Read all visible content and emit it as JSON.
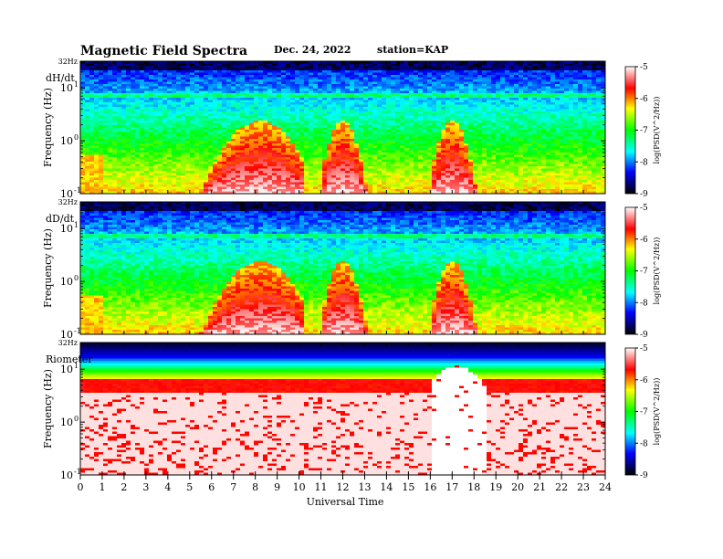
{
  "header": {
    "title": "Magnetic Field Spectra",
    "date": "Dec. 24, 2022",
    "station": "station=KAP"
  },
  "chart_data": {
    "type": "heatmap",
    "xlabel": "Universal Time",
    "xlim": [
      0,
      24
    ],
    "x_ticks": [
      "0",
      "1",
      "2",
      "3",
      "4",
      "5",
      "6",
      "7",
      "8",
      "9",
      "10",
      "11",
      "12",
      "13",
      "14",
      "15",
      "16",
      "17",
      "18",
      "19",
      "20",
      "21",
      "22",
      "23",
      "24"
    ],
    "panels": [
      {
        "name": "dH/dt",
        "ylabel": "Frequency (Hz)",
        "top_label": "32Hz",
        "y_ticks": [
          {
            "base": "10",
            "exp": "-1"
          },
          {
            "base": "10",
            "exp": "0"
          },
          {
            "base": "10",
            "exp": "1"
          }
        ],
        "colorbar": {
          "label": "log(PSD(V^2/Hz))",
          "ticks": [
            "-5",
            "-6",
            "-7",
            "-8",
            "-9"
          ],
          "range": [
            -9,
            -5
          ]
        },
        "activity_bursts": [
          {
            "start": 4.8,
            "end": 10.2,
            "peak": 9.0,
            "center": 8.2
          },
          {
            "start": 11.0,
            "end": 13.3,
            "peak": 9.0,
            "center": 12.0
          },
          {
            "start": 16.0,
            "end": 18.3,
            "peak": 8.0,
            "center": 17.0
          }
        ]
      },
      {
        "name": "dD/dt",
        "ylabel": "Frequency (Hz)",
        "top_label": "32Hz",
        "y_ticks": [
          {
            "base": "10",
            "exp": "-1"
          },
          {
            "base": "10",
            "exp": "0"
          },
          {
            "base": "10",
            "exp": "1"
          }
        ],
        "colorbar": {
          "label": "log(PSD(V^2/Hz))",
          "ticks": [
            "-5",
            "-6",
            "-7",
            "-8",
            "-9"
          ],
          "range": [
            -9,
            -5
          ]
        },
        "activity_bursts": [
          {
            "start": 4.8,
            "end": 10.2,
            "peak": 9.0,
            "center": 8.2
          },
          {
            "start": 11.0,
            "end": 13.3,
            "peak": 9.0,
            "center": 12.0
          },
          {
            "start": 16.0,
            "end": 18.3,
            "peak": 8.0,
            "center": 17.0
          }
        ]
      },
      {
        "name": "Riometer",
        "ylabel": "Frequency (Hz)",
        "top_label": "32Hz",
        "y_ticks": [
          {
            "base": "10",
            "exp": "-1"
          },
          {
            "base": "10",
            "exp": "0"
          },
          {
            "base": "10",
            "exp": "1"
          }
        ],
        "colorbar": {
          "label": "log(PSD(V^2/Hz))",
          "ticks": [
            "-5",
            "-6",
            "-7",
            "-8",
            "-9"
          ],
          "range": [
            -9,
            -5
          ]
        },
        "activity_bursts": [
          {
            "start": 16.0,
            "end": 18.6,
            "peak": 5.0,
            "center": 17.2
          }
        ]
      }
    ]
  }
}
